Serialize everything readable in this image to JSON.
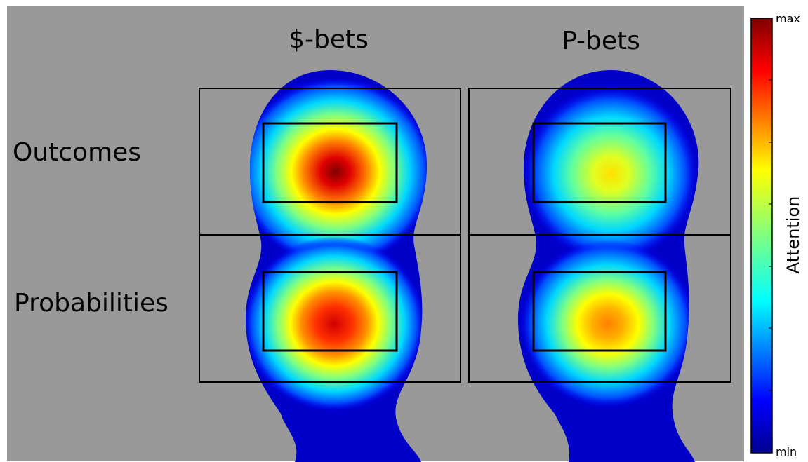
{
  "columns": [
    "$-bets",
    "P-bets"
  ],
  "rows": [
    "Outcomes",
    "Probabilities"
  ],
  "colorbar": {
    "label": "Attention",
    "max": "max",
    "min": "min"
  }
}
